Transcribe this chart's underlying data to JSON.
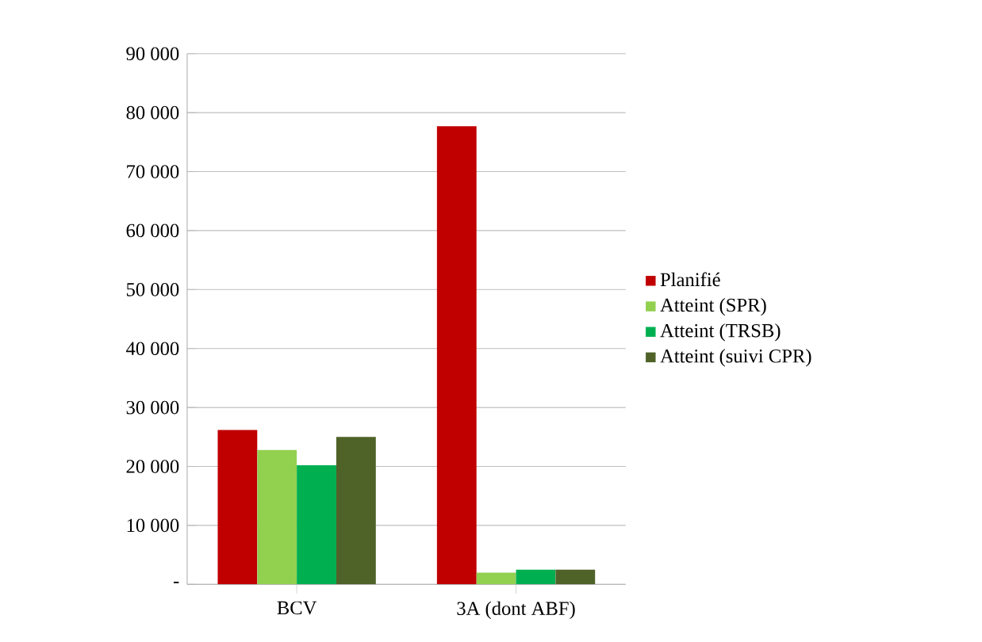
{
  "chart_data": {
    "type": "bar",
    "categories": [
      "BCV",
      "3A (dont ABF)"
    ],
    "series": [
      {
        "name": "Planifié",
        "color": "#c00000",
        "values": [
          26200,
          77700
        ]
      },
      {
        "name": "Atteint (SPR)",
        "color": "#92d050",
        "values": [
          22800,
          2000
        ]
      },
      {
        "name": "Atteint (TRSB)",
        "color": "#00b050",
        "values": [
          20200,
          2500
        ]
      },
      {
        "name": "Atteint (suivi CPR)",
        "color": "#4f6228",
        "values": [
          25000,
          2500
        ]
      }
    ],
    "ylim": [
      0,
      90000
    ],
    "yticks": [
      {
        "value": 0,
        "label": "-"
      },
      {
        "value": 10000,
        "label": "10 000"
      },
      {
        "value": 20000,
        "label": "20 000"
      },
      {
        "value": 30000,
        "label": "30 000"
      },
      {
        "value": 40000,
        "label": "40 000"
      },
      {
        "value": 50000,
        "label": "50 000"
      },
      {
        "value": 60000,
        "label": "60 000"
      },
      {
        "value": 70000,
        "label": "70 000"
      },
      {
        "value": 80000,
        "label": "80 000"
      },
      {
        "value": 90000,
        "label": "90 000"
      }
    ],
    "grid": "y",
    "legend": "right"
  }
}
